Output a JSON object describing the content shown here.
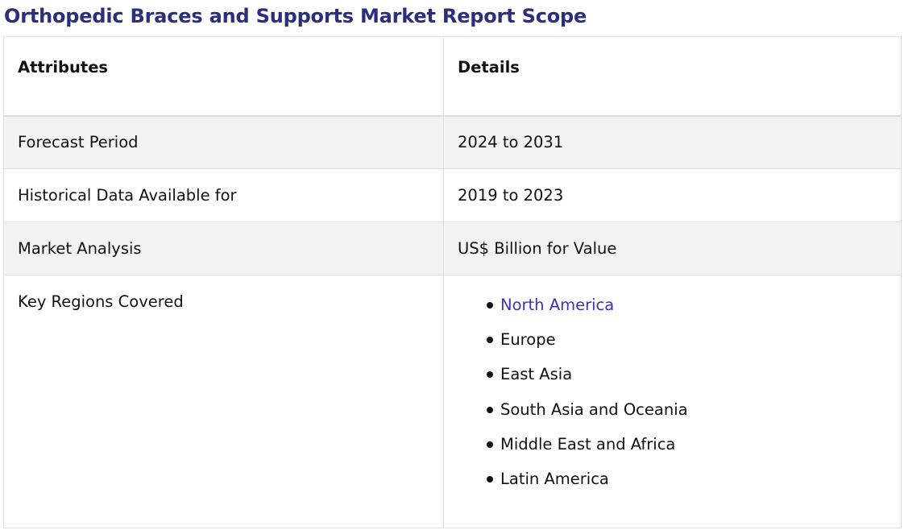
{
  "page": {
    "title": "Orthopedic Braces and Supports Market Report Scope"
  },
  "table": {
    "headers": [
      "Attributes",
      "Details"
    ],
    "rows": [
      {
        "attribute": "Forecast Period",
        "detail": "2024 to 2031"
      },
      {
        "attribute": "Historical Data Available for",
        "detail": "2019 to 2023"
      },
      {
        "attribute": "Market Analysis",
        "detail": "US$ Billion for Value"
      }
    ],
    "regions": {
      "attribute": "Key Regions Covered",
      "items": [
        {
          "label": "North America",
          "link": true
        },
        {
          "label": "Europe",
          "link": false
        },
        {
          "label": "East Asia",
          "link": false
        },
        {
          "label": "South Asia and Oceania",
          "link": false
        },
        {
          "label": "Middle East and Africa",
          "link": false
        },
        {
          "label": "Latin America",
          "link": false
        }
      ]
    }
  },
  "colors": {
    "title": "#2a2f7d",
    "link": "#3b33b8",
    "shaded_row": "#f2f2f2",
    "border": "#e0e0e0"
  }
}
